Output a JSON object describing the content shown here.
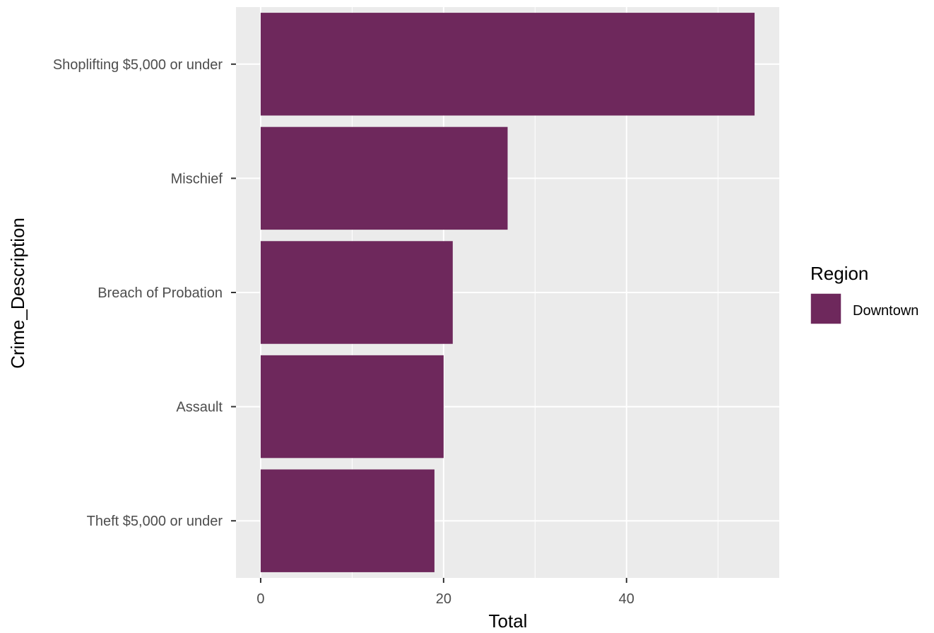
{
  "chart_data": {
    "type": "bar",
    "orientation": "horizontal",
    "xlabel": "Total",
    "ylabel": "Crime_Description",
    "categories": [
      "Shoplifting $5,000 or under",
      "Mischief",
      "Breach of Probation",
      "Assault",
      "Theft $5,000 or under"
    ],
    "series": [
      {
        "name": "Downtown",
        "values": [
          54,
          27,
          21,
          20,
          19
        ]
      }
    ],
    "xlim": [
      -2.7,
      56.7
    ],
    "x_ticks": [
      0,
      20,
      40
    ],
    "x_minor_ticks": [
      10,
      30,
      50
    ],
    "grid": true,
    "legend": {
      "title": "Region",
      "position": "right"
    },
    "colors": {
      "bar": "#6e285c",
      "panel": "#ebebeb",
      "grid": "#ffffff",
      "tick": "#333333"
    }
  }
}
